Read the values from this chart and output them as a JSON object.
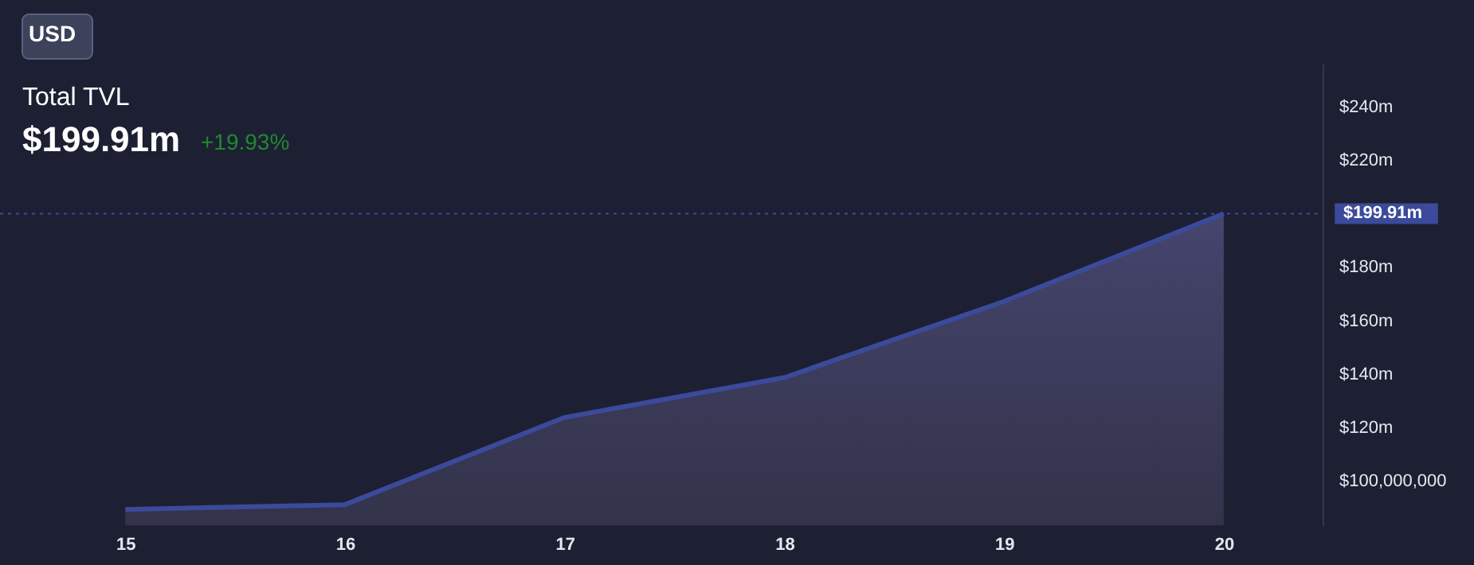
{
  "chart_data": {
    "type": "area",
    "title": "Total TVL",
    "subtitle": "$199.91m",
    "annotations": [
      "USD",
      "+19.93%"
    ],
    "x": [
      15,
      16,
      17,
      18,
      19,
      20
    ],
    "series": [
      {
        "color": "#3b4a9a",
        "values": [
          89300000,
          91100000,
          123700000,
          138600000,
          167100000,
          199910000
        ]
      }
    ],
    "xlim": [
      14.43,
      20.45
    ],
    "xticks": [
      15,
      16,
      17,
      18,
      19,
      20
    ],
    "ylim": [
      83400000,
      256000000
    ],
    "yticks": [
      {
        "value": 100000000,
        "label": "$100,000,000"
      },
      {
        "value": 120000000,
        "label": "$120m"
      },
      {
        "value": 140000000,
        "label": "$140m"
      },
      {
        "value": 160000000,
        "label": "$160m"
      },
      {
        "value": 180000000,
        "label": "$180m"
      },
      {
        "value": 220000000,
        "label": "$220m"
      },
      {
        "value": 240000000,
        "label": "$240m"
      }
    ],
    "ref_lines": [
      {
        "axis": "y",
        "value": 199910000,
        "label": "$199.91m",
        "color": "#3b4a9a",
        "line_style": "dotted"
      }
    ],
    "grid": false
  }
}
